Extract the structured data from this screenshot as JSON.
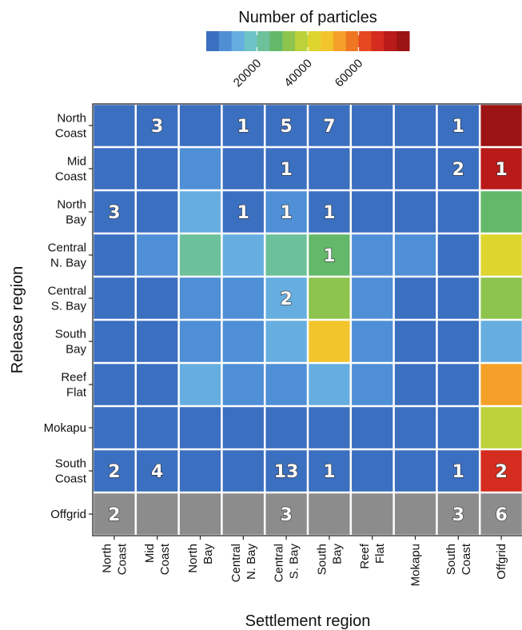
{
  "chart_data": {
    "type": "heatmap",
    "title": "",
    "xlabel": "Settlement region",
    "ylabel": "Release region",
    "x_categories": [
      [
        "North",
        "Coast"
      ],
      [
        "Mid",
        "Coast"
      ],
      [
        "North",
        "Bay"
      ],
      [
        "Central",
        "N. Bay"
      ],
      [
        "Central",
        "S. Bay"
      ],
      [
        "South",
        "Bay"
      ],
      [
        "Reef",
        "Flat"
      ],
      [
        "Mokapu"
      ],
      [
        "South",
        "Coast"
      ],
      [
        "Offgrid"
      ]
    ],
    "y_categories": [
      [
        "North",
        "Coast"
      ],
      [
        "Mid",
        "Coast"
      ],
      [
        "North",
        "Bay"
      ],
      [
        "Central",
        "N. Bay"
      ],
      [
        "Central",
        "S. Bay"
      ],
      [
        "South",
        "Bay"
      ],
      [
        "Reef",
        "Flat"
      ],
      [
        "Mokapu"
      ],
      [
        "South",
        "Coast"
      ],
      [
        "Offgrid"
      ]
    ],
    "legend": {
      "title": "Number of particles",
      "range": [
        0,
        80000
      ],
      "ticks": [
        20000,
        40000,
        60000
      ],
      "tick_labels": [
        "20000",
        "40000",
        "60000"
      ],
      "placement": "top",
      "colors": [
        "#3b6fc0",
        "#4f8fd6",
        "#67aee0",
        "#6ec3c6",
        "#6cc19a",
        "#63b86a",
        "#8dc44e",
        "#bcd23a",
        "#dfd52f",
        "#f3c52d",
        "#f5a028",
        "#ef7623",
        "#e6481f",
        "#d42c1e",
        "#b81b1a",
        "#9b1313"
      ]
    },
    "missing_color": "#8c8c8c",
    "values": [
      [
        1200,
        1500,
        1200,
        1300,
        1500,
        1200,
        1000,
        1000,
        1400,
        78000
      ],
      [
        1200,
        1400,
        8000,
        4000,
        3000,
        4000,
        1500,
        1200,
        1500,
        71000
      ],
      [
        1500,
        1500,
        12000,
        4000,
        5000,
        3000,
        1500,
        1000,
        1500,
        25000
      ],
      [
        3000,
        6000,
        24000,
        14000,
        22000,
        29000,
        9000,
        5000,
        4000,
        42000
      ],
      [
        1500,
        2000,
        9000,
        6000,
        13000,
        31000,
        5000,
        2000,
        1500,
        30000
      ],
      [
        1500,
        2000,
        5000,
        5000,
        11000,
        45000,
        5000,
        2000,
        1500,
        13000
      ],
      [
        1500,
        2000,
        12000,
        6000,
        8000,
        13000,
        5000,
        2000,
        1500,
        50000
      ],
      [
        1000,
        1000,
        1500,
        500,
        1500,
        1500,
        1000,
        1000,
        1000,
        36000
      ],
      [
        1500,
        1800,
        1500,
        500,
        2000,
        1500,
        1000,
        1000,
        1500,
        66000
      ],
      [
        null,
        null,
        null,
        null,
        null,
        null,
        null,
        null,
        null,
        null
      ]
    ],
    "cell_labels": [
      [
        "",
        "3",
        "",
        "1",
        "5",
        "7",
        "",
        "",
        "1",
        ""
      ],
      [
        "",
        "",
        "",
        "",
        "1",
        "",
        "",
        "",
        "2",
        "1"
      ],
      [
        "3",
        "",
        "",
        "1",
        "1",
        "1",
        "",
        "",
        "",
        ""
      ],
      [
        "",
        "",
        "",
        "",
        "",
        "1",
        "",
        "",
        "",
        ""
      ],
      [
        "",
        "",
        "",
        "",
        "2",
        "",
        "",
        "",
        "",
        ""
      ],
      [
        "",
        "",
        "",
        "",
        "",
        "",
        "",
        "",
        "",
        ""
      ],
      [
        "",
        "",
        "",
        "",
        "",
        "",
        "",
        "",
        "",
        ""
      ],
      [
        "",
        "",
        "",
        "",
        "",
        "",
        "",
        "",
        "",
        ""
      ],
      [
        "2",
        "4",
        "",
        "",
        "13",
        "1",
        "",
        "",
        "1",
        "2"
      ],
      [
        "2",
        "",
        "",
        "",
        "3",
        "",
        "",
        "",
        "3",
        "6"
      ]
    ]
  }
}
